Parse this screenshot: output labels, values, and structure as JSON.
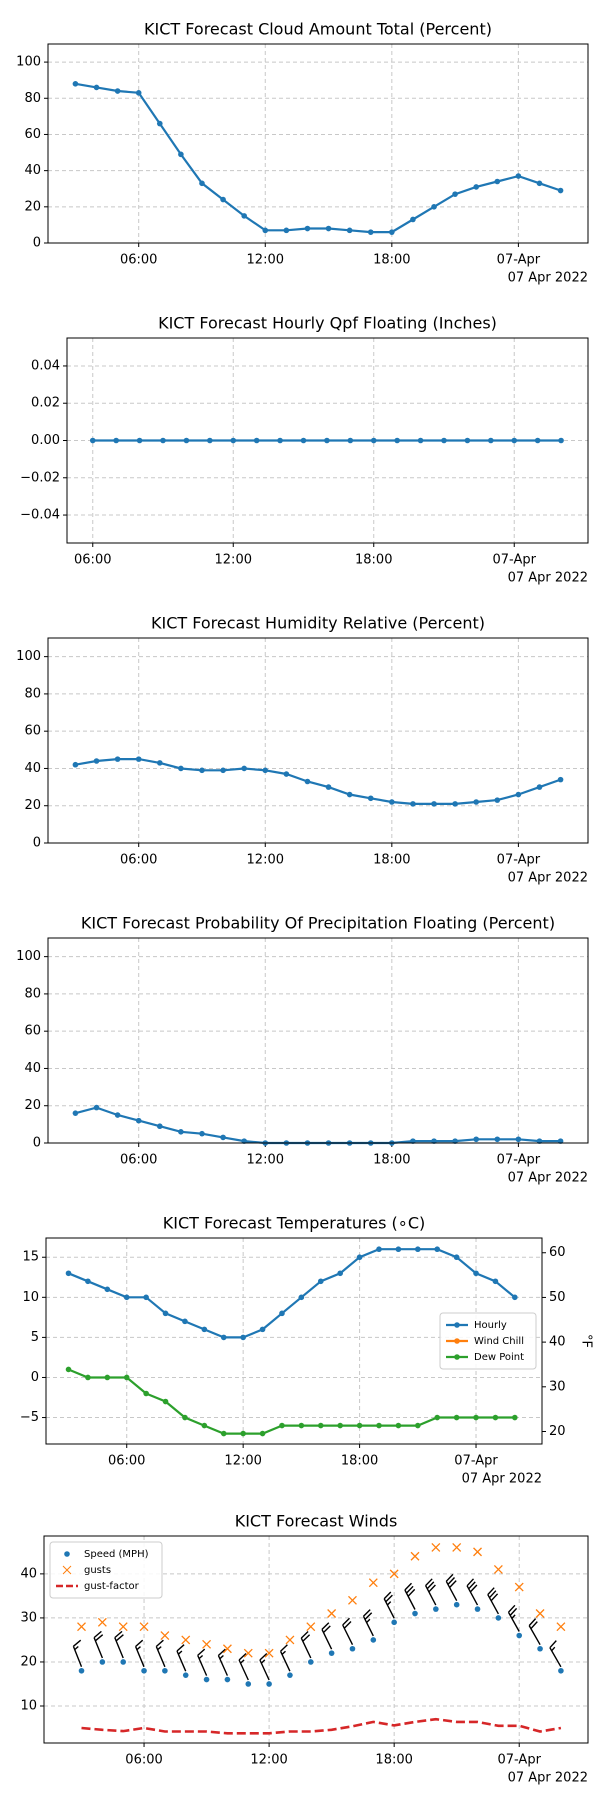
{
  "chart_data": [
    {
      "type": "line",
      "title": "KICT Forecast Cloud Amount Total (Percent)",
      "annotation": "07 Apr 2022",
      "x": [
        3,
        4,
        5,
        6,
        7,
        8,
        9,
        10,
        11,
        12,
        13,
        14,
        15,
        16,
        17,
        18,
        19,
        20,
        21,
        22,
        23,
        24,
        25,
        26
      ],
      "series": [
        {
          "color": "#1f77b4",
          "marker": "dot",
          "values": [
            88,
            86,
            84,
            83,
            66,
            49,
            33,
            24,
            15,
            7,
            7,
            8,
            8,
            7,
            6,
            6,
            13,
            20,
            27,
            31,
            34,
            37,
            33,
            29
          ]
        }
      ],
      "xlim": [
        1.7,
        27.3
      ],
      "xticks": [
        {
          "value": 6,
          "label": "06:00"
        },
        {
          "value": 12,
          "label": "12:00"
        },
        {
          "value": 18,
          "label": "18:00"
        },
        {
          "value": 24,
          "label": "07-Apr"
        }
      ],
      "ylim": [
        0,
        110
      ],
      "yticks": [
        0,
        20,
        40,
        60,
        80,
        100
      ],
      "grid": true
    },
    {
      "type": "line",
      "title": "KICT Forecast Hourly Qpf Floating (Inches)",
      "annotation": "07 Apr 2022",
      "x": [
        6,
        7,
        8,
        9,
        10,
        11,
        12,
        13,
        14,
        15,
        16,
        17,
        18,
        19,
        20,
        21,
        22,
        23,
        24,
        25,
        26
      ],
      "series": [
        {
          "color": "#1f77b4",
          "marker": "dot",
          "values": [
            0,
            0,
            0,
            0,
            0,
            0,
            0,
            0,
            0,
            0,
            0,
            0,
            0,
            0,
            0,
            0,
            0,
            0,
            0,
            0,
            0
          ]
        }
      ],
      "xlim": [
        4.9,
        27.15
      ],
      "xticks": [
        {
          "value": 6,
          "label": "06:00"
        },
        {
          "value": 12,
          "label": "12:00"
        },
        {
          "value": 18,
          "label": "18:00"
        },
        {
          "value": 24,
          "label": "07-Apr"
        }
      ],
      "ylim": [
        -0.055,
        0.055
      ],
      "yticks": [
        {
          "value": -0.04,
          "label": "−0.04"
        },
        {
          "value": -0.02,
          "label": "−0.02"
        },
        {
          "value": 0,
          "label": "0.00"
        },
        {
          "value": 0.02,
          "label": "0.02"
        },
        {
          "value": 0.04,
          "label": "0.04"
        }
      ],
      "grid": true
    },
    {
      "type": "line",
      "title": "KICT Forecast Humidity Relative (Percent)",
      "annotation": "07 Apr 2022",
      "x": [
        3,
        4,
        5,
        6,
        7,
        8,
        9,
        10,
        11,
        12,
        13,
        14,
        15,
        16,
        17,
        18,
        19,
        20,
        21,
        22,
        23,
        24,
        25,
        26
      ],
      "series": [
        {
          "color": "#1f77b4",
          "marker": "dot",
          "values": [
            42,
            44,
            45,
            45,
            43,
            40,
            39,
            39,
            40,
            39,
            37,
            33,
            30,
            26,
            24,
            22,
            21,
            21,
            21,
            22,
            23,
            26,
            30,
            34
          ]
        }
      ],
      "xlim": [
        1.7,
        27.3
      ],
      "xticks": [
        {
          "value": 6,
          "label": "06:00"
        },
        {
          "value": 12,
          "label": "12:00"
        },
        {
          "value": 18,
          "label": "18:00"
        },
        {
          "value": 24,
          "label": "07-Apr"
        }
      ],
      "ylim": [
        0,
        110
      ],
      "yticks": [
        0,
        20,
        40,
        60,
        80,
        100
      ],
      "grid": true
    },
    {
      "type": "line",
      "title": "KICT Forecast Probability Of Precipitation Floating (Percent)",
      "annotation": "07 Apr 2022",
      "x": [
        3,
        4,
        5,
        6,
        7,
        8,
        9,
        10,
        11,
        12,
        13,
        14,
        15,
        16,
        17,
        18,
        19,
        20,
        21,
        22,
        23,
        24,
        25,
        26
      ],
      "series": [
        {
          "color": "#1f77b4",
          "marker": "dot",
          "values": [
            16,
            19,
            15,
            12,
            9,
            6,
            5,
            3,
            1,
            0,
            0,
            0,
            0,
            0,
            0,
            0,
            1,
            1,
            1,
            2,
            2,
            2,
            1,
            1
          ]
        }
      ],
      "xlim": [
        1.7,
        27.3
      ],
      "xticks": [
        {
          "value": 6,
          "label": "06:00"
        },
        {
          "value": 12,
          "label": "12:00"
        },
        {
          "value": 18,
          "label": "18:00"
        },
        {
          "value": 24,
          "label": "07-Apr"
        }
      ],
      "ylim": [
        0,
        110
      ],
      "yticks": [
        0,
        20,
        40,
        60,
        80,
        100
      ],
      "grid": true
    },
    {
      "type": "line",
      "title": "KICT Forecast Temperatures (∘C)",
      "annotation": "07 Apr 2022",
      "x": [
        3,
        4,
        5,
        6,
        7,
        8,
        9,
        10,
        11,
        12,
        13,
        14,
        15,
        16,
        17,
        18,
        19,
        20,
        21,
        22,
        23,
        24,
        25,
        26
      ],
      "series": [
        {
          "name": "Hourly",
          "color": "#1f77b4",
          "marker": "dot",
          "values": [
            13,
            12,
            11,
            10,
            10,
            8,
            7,
            6,
            5,
            5,
            6,
            8,
            10,
            12,
            13,
            15,
            16,
            16,
            16,
            16,
            15,
            13,
            12,
            10
          ]
        },
        {
          "name": "Wind Chill",
          "color": "#ff7f0e",
          "marker": "dot",
          "values": [
            null,
            null,
            null,
            null,
            null,
            null,
            null,
            null,
            null,
            null,
            null,
            null,
            null,
            null,
            null,
            null,
            null,
            null,
            null,
            null,
            null,
            null,
            null,
            null
          ]
        },
        {
          "name": "Dew Point",
          "color": "#2ca02c",
          "marker": "dot",
          "values": [
            1,
            0,
            0,
            0,
            -2,
            -3,
            -5,
            -6,
            -7,
            -7,
            -7,
            -6,
            -6,
            -6,
            -6,
            -6,
            -6,
            -6,
            -6,
            -5,
            -5,
            -5,
            -5,
            -5
          ]
        }
      ],
      "xlim": [
        1.84,
        27.4
      ],
      "xticks": [
        {
          "value": 6,
          "label": "06:00"
        },
        {
          "value": 12,
          "label": "12:00"
        },
        {
          "value": 18,
          "label": "18:00"
        },
        {
          "value": 24,
          "label": "07-Apr"
        }
      ],
      "ylim": [
        -8.3,
        17.4
      ],
      "yticks": [
        {
          "value": -5,
          "label": "−5"
        },
        0,
        5,
        10,
        15
      ],
      "y2lim": [
        17.2,
        63.3
      ],
      "y2ticks": [
        20,
        30,
        40,
        50,
        60
      ],
      "y2label": "°F",
      "grid": true,
      "legend": "center right"
    },
    {
      "type": "line",
      "title": "KICT Forecast Winds",
      "annotation": "07 Apr 2022",
      "x": [
        3,
        4,
        5,
        6,
        7,
        8,
        9,
        10,
        11,
        12,
        13,
        14,
        15,
        16,
        17,
        18,
        19,
        20,
        21,
        22,
        23,
        24,
        25,
        26
      ],
      "series": [
        {
          "name": "Speed (MPH)",
          "color": "#1f77b4",
          "marker": "dot",
          "line": false,
          "barbs": true,
          "values": [
            18,
            20,
            20,
            18,
            18,
            17,
            16,
            16,
            15,
            15,
            17,
            20,
            22,
            23,
            25,
            29,
            31,
            32,
            33,
            32,
            30,
            26,
            23,
            18
          ]
        },
        {
          "name": "gusts",
          "color": "#ff7f0e",
          "marker": "x",
          "line": false,
          "values": [
            28,
            29,
            28,
            28,
            26,
            25,
            24,
            23,
            22,
            22,
            25,
            28,
            31,
            34,
            38,
            40,
            44,
            46,
            46,
            45,
            41,
            37,
            31,
            28
          ]
        },
        {
          "name": "gust-factor",
          "color": "#d62728",
          "marker": "none",
          "dashed": true,
          "values": [
            5,
            4.6,
            4.3,
            5,
            4.2,
            4.2,
            4.2,
            3.8,
            3.8,
            3.8,
            4.2,
            4.2,
            4.6,
            5.4,
            6.4,
            5.6,
            6.4,
            7,
            6.4,
            6.4,
            5.5,
            5.5,
            4.2,
            5
          ]
        }
      ],
      "xlim": [
        1.2,
        27.3
      ],
      "xticks": [
        {
          "value": 6,
          "label": "06:00"
        },
        {
          "value": 12,
          "label": "12:00"
        },
        {
          "value": 18,
          "label": "18:00"
        },
        {
          "value": 24,
          "label": "07-Apr"
        }
      ],
      "ylim": [
        1.6,
        48.6
      ],
      "yticks": [
        10,
        20,
        30,
        40
      ],
      "grid": true,
      "legend": "upper left"
    }
  ]
}
